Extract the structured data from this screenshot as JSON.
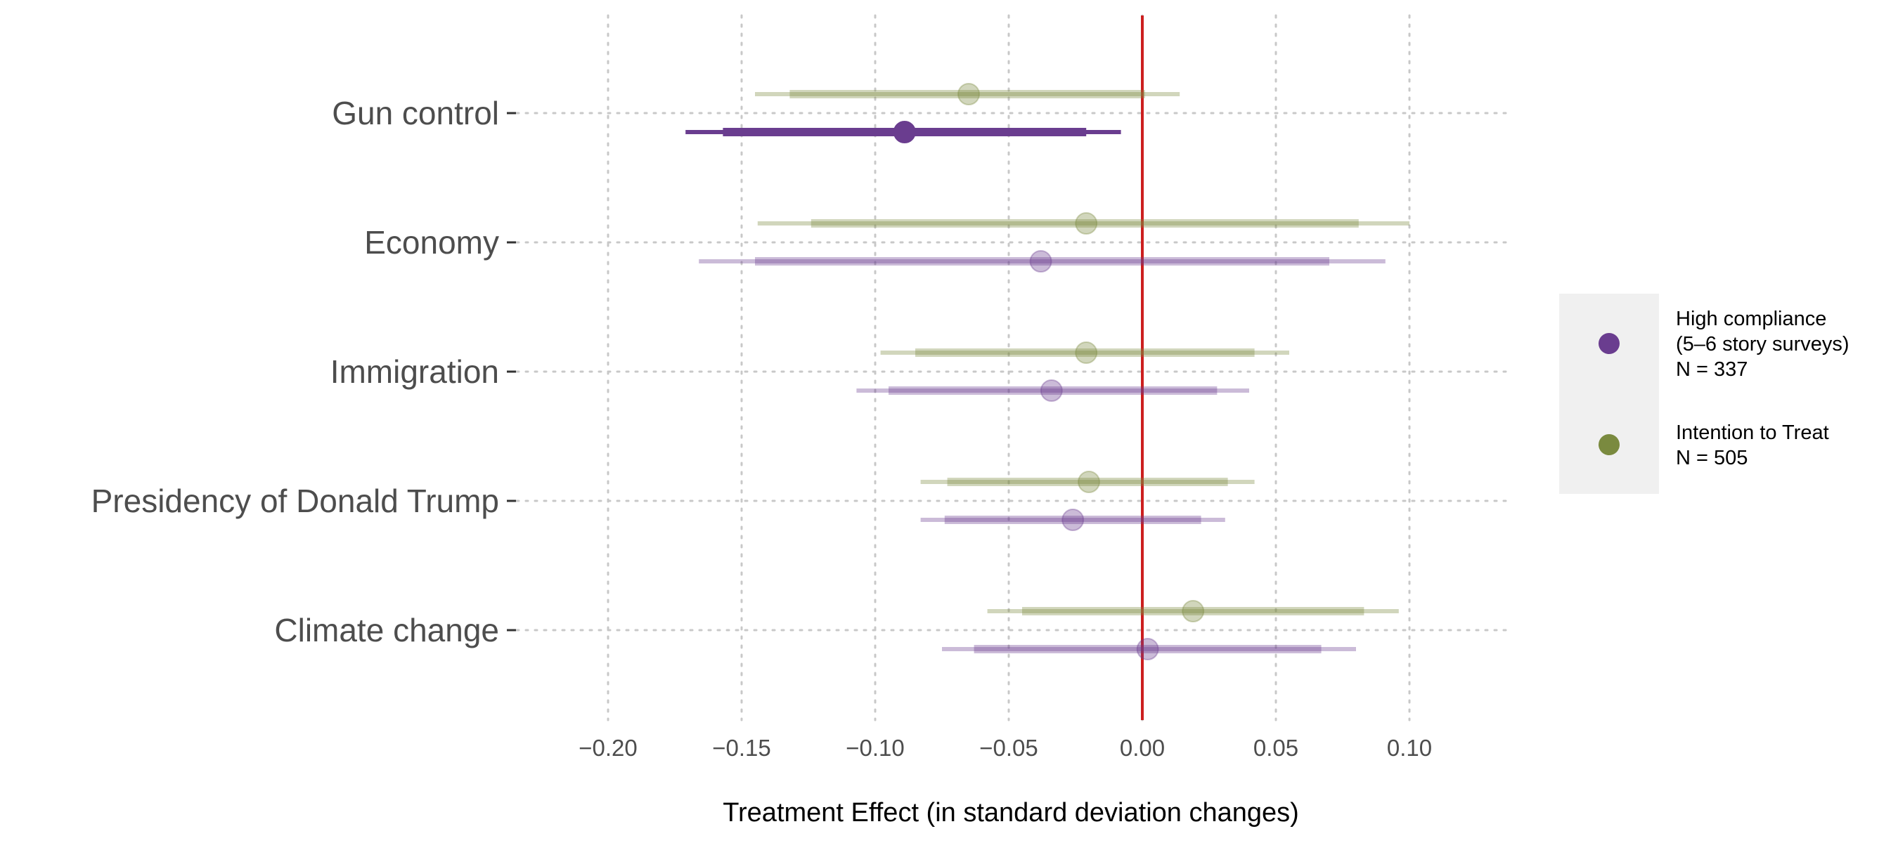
{
  "chart_data": {
    "type": "forest",
    "xlabel": "Treatment Effect (in standard deviation changes)",
    "ylabel": "",
    "xlim": [
      -0.2,
      0.1
    ],
    "x_ticks": [
      -0.2,
      -0.15,
      -0.1,
      -0.05,
      0.0,
      0.05,
      0.1
    ],
    "x_tick_labels": [
      "−0.20",
      "−0.15",
      "−0.10",
      "−0.05",
      "0.00",
      "0.05",
      "0.10"
    ],
    "reference_line": 0.0,
    "grid": "dotted",
    "legend_position": "right",
    "categories": [
      "Gun control",
      "Economy",
      "Immigration",
      "Presidency of Donald Trump",
      "Climate change"
    ],
    "series": [
      {
        "name": "Intention to Treat",
        "legend_lines": [
          "Intention to Treat",
          "N = 505"
        ],
        "color": "#7a8a3f",
        "points": [
          {
            "category": "Gun control",
            "estimate": -0.065,
            "ci90": [
              -0.132,
              0.001
            ],
            "ci95": [
              -0.145,
              0.014
            ],
            "significant": false
          },
          {
            "category": "Economy",
            "estimate": -0.021,
            "ci90": [
              -0.124,
              0.081
            ],
            "ci95": [
              -0.144,
              0.1
            ],
            "significant": false
          },
          {
            "category": "Immigration",
            "estimate": -0.021,
            "ci90": [
              -0.085,
              0.042
            ],
            "ci95": [
              -0.098,
              0.055
            ],
            "significant": false
          },
          {
            "category": "Presidency of Donald Trump",
            "estimate": -0.02,
            "ci90": [
              -0.073,
              0.032
            ],
            "ci95": [
              -0.083,
              0.042
            ],
            "significant": false
          },
          {
            "category": "Climate change",
            "estimate": 0.019,
            "ci90": [
              -0.045,
              0.083
            ],
            "ci95": [
              -0.058,
              0.096
            ],
            "significant": false
          }
        ]
      },
      {
        "name": "High compliance",
        "legend_lines": [
          "High compliance",
          "(5–6 story surveys)",
          "N = 337"
        ],
        "color": "#6a3d8f",
        "points": [
          {
            "category": "Gun control",
            "estimate": -0.089,
            "ci90": [
              -0.157,
              -0.021
            ],
            "ci95": [
              -0.171,
              -0.008
            ],
            "significant": true
          },
          {
            "category": "Economy",
            "estimate": -0.038,
            "ci90": [
              -0.145,
              0.07
            ],
            "ci95": [
              -0.166,
              0.091
            ],
            "significant": false
          },
          {
            "category": "Immigration",
            "estimate": -0.034,
            "ci90": [
              -0.095,
              0.028
            ],
            "ci95": [
              -0.107,
              0.04
            ],
            "significant": false
          },
          {
            "category": "Presidency of Donald Trump",
            "estimate": -0.026,
            "ci90": [
              -0.074,
              0.022
            ],
            "ci95": [
              -0.083,
              0.031
            ],
            "significant": false
          },
          {
            "category": "Climate change",
            "estimate": 0.002,
            "ci90": [
              -0.063,
              0.067
            ],
            "ci95": [
              -0.075,
              0.08
            ],
            "significant": false
          }
        ]
      }
    ]
  }
}
